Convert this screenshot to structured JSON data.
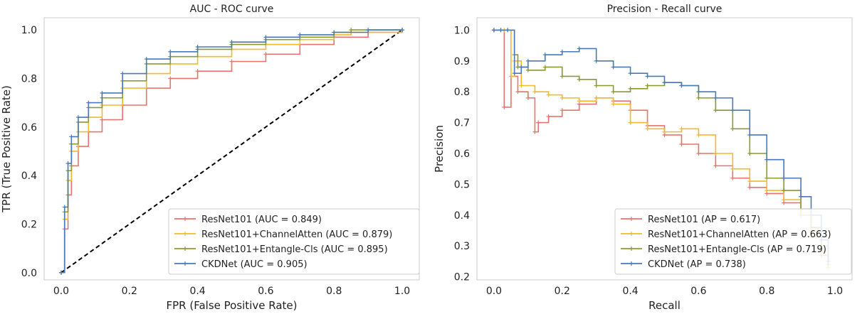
{
  "chart_data": [
    {
      "type": "line",
      "title": "AUC - ROC curve",
      "xlabel": "FPR (False Positive Rate)",
      "ylabel": "TPR (True Positive Rate)",
      "xlim": [
        -0.05,
        1.05
      ],
      "ylim": [
        -0.03,
        1.05
      ],
      "xticks": [
        0.0,
        0.2,
        0.4,
        0.6,
        0.8,
        1.0
      ],
      "yticks": [
        0.0,
        0.2,
        0.4,
        0.6,
        0.8,
        1.0
      ],
      "legend": "lower-right",
      "baseline": {
        "x": [
          0,
          1
        ],
        "y": [
          0,
          1
        ],
        "style": "dashed",
        "color": "#000000"
      },
      "series": [
        {
          "name": "ResNet101 (AUC = 0.849)",
          "color": "#e8736c",
          "x": [
            0,
            0.01,
            0.02,
            0.03,
            0.05,
            0.08,
            0.12,
            0.18,
            0.25,
            0.32,
            0.4,
            0.5,
            0.6,
            0.7,
            0.8,
            0.9,
            1.0
          ],
          "y": [
            0,
            0.18,
            0.32,
            0.44,
            0.52,
            0.58,
            0.63,
            0.69,
            0.76,
            0.8,
            0.83,
            0.87,
            0.9,
            0.94,
            0.97,
            0.99,
            1.0
          ]
        },
        {
          "name": "ResNet101+ChannelAtten (AUC = 0.879)",
          "color": "#f2b92a",
          "x": [
            0,
            0.01,
            0.02,
            0.03,
            0.05,
            0.08,
            0.12,
            0.18,
            0.25,
            0.32,
            0.4,
            0.5,
            0.6,
            0.7,
            0.8,
            0.85,
            1.0
          ],
          "y": [
            0,
            0.22,
            0.38,
            0.5,
            0.58,
            0.64,
            0.69,
            0.76,
            0.82,
            0.86,
            0.89,
            0.92,
            0.94,
            0.96,
            0.98,
            0.99,
            1.0
          ]
        },
        {
          "name": "ResNet101+Entangle-Cls (AUC = 0.895)",
          "color": "#8b9a2d",
          "x": [
            0,
            0.01,
            0.02,
            0.03,
            0.05,
            0.08,
            0.12,
            0.18,
            0.25,
            0.32,
            0.4,
            0.5,
            0.6,
            0.7,
            0.8,
            0.85,
            1.0
          ],
          "y": [
            0,
            0.25,
            0.42,
            0.53,
            0.62,
            0.68,
            0.72,
            0.79,
            0.86,
            0.89,
            0.92,
            0.94,
            0.96,
            0.97,
            0.99,
            1.0,
            1.0
          ]
        },
        {
          "name": "CKDNet (AUC = 0.905)",
          "color": "#4a78b8",
          "x": [
            0,
            0.01,
            0.02,
            0.03,
            0.05,
            0.08,
            0.12,
            0.18,
            0.25,
            0.32,
            0.4,
            0.5,
            0.6,
            0.7,
            0.8,
            0.9,
            1.0
          ],
          "y": [
            0,
            0.27,
            0.45,
            0.56,
            0.64,
            0.7,
            0.74,
            0.82,
            0.88,
            0.91,
            0.93,
            0.95,
            0.97,
            0.98,
            0.99,
            1.0,
            1.0
          ]
        }
      ]
    },
    {
      "type": "line",
      "title": "Precision - Recall curve",
      "xlabel": "Recall",
      "ylabel": "Precision",
      "xlim": [
        -0.05,
        1.05
      ],
      "ylim": [
        0.19,
        1.04
      ],
      "xticks": [
        0.0,
        0.2,
        0.4,
        0.6,
        0.8,
        1.0
      ],
      "yticks": [
        0.2,
        0.3,
        0.4,
        0.5,
        0.6,
        0.7,
        0.8,
        0.9,
        1.0
      ],
      "legend": "lower-right",
      "series": [
        {
          "name": "ResNet101 (AP = 0.617)",
          "color": "#e8736c",
          "x": [
            0,
            0.02,
            0.03,
            0.05,
            0.07,
            0.1,
            0.12,
            0.13,
            0.16,
            0.2,
            0.25,
            0.3,
            0.35,
            0.4,
            0.45,
            0.5,
            0.55,
            0.6,
            0.65,
            0.7,
            0.75,
            0.8,
            0.85,
            0.9,
            0.93,
            0.96,
            0.98
          ],
          "y": [
            1.0,
            1.0,
            0.75,
            0.85,
            0.8,
            0.78,
            0.67,
            0.7,
            0.72,
            0.74,
            0.76,
            0.78,
            0.77,
            0.74,
            0.69,
            0.66,
            0.63,
            0.6,
            0.56,
            0.52,
            0.49,
            0.47,
            0.44,
            0.4,
            0.33,
            0.27,
            0.23
          ]
        },
        {
          "name": "ResNet101+ChannelAtten (AP = 0.663)",
          "color": "#f2b92a",
          "x": [
            0,
            0.03,
            0.05,
            0.06,
            0.08,
            0.12,
            0.16,
            0.2,
            0.25,
            0.3,
            0.35,
            0.4,
            0.45,
            0.5,
            0.55,
            0.6,
            0.65,
            0.7,
            0.75,
            0.8,
            0.85,
            0.9,
            0.93,
            0.96,
            0.98
          ],
          "y": [
            1.0,
            1.0,
            0.85,
            0.9,
            0.82,
            0.8,
            0.79,
            0.78,
            0.77,
            0.78,
            0.76,
            0.7,
            0.68,
            0.67,
            0.68,
            0.66,
            0.6,
            0.55,
            0.51,
            0.48,
            0.45,
            0.4,
            0.35,
            0.28,
            0.23
          ]
        },
        {
          "name": "ResNet101+Entangle-Cls (AP = 0.719)",
          "color": "#8b9a2d",
          "x": [
            0,
            0.04,
            0.06,
            0.07,
            0.1,
            0.15,
            0.2,
            0.25,
            0.3,
            0.35,
            0.4,
            0.45,
            0.5,
            0.55,
            0.6,
            0.65,
            0.7,
            0.75,
            0.8,
            0.85,
            0.9,
            0.93,
            0.96,
            0.98
          ],
          "y": [
            1.0,
            1.0,
            0.92,
            0.88,
            0.87,
            0.88,
            0.85,
            0.84,
            0.82,
            0.8,
            0.81,
            0.82,
            0.83,
            0.82,
            0.78,
            0.74,
            0.68,
            0.6,
            0.52,
            0.48,
            0.42,
            0.36,
            0.3,
            0.24
          ]
        },
        {
          "name": "CKDNet (AP = 0.738)",
          "color": "#4a78b8",
          "x": [
            0,
            0.02,
            0.04,
            0.06,
            0.08,
            0.1,
            0.15,
            0.2,
            0.25,
            0.3,
            0.35,
            0.4,
            0.45,
            0.5,
            0.55,
            0.6,
            0.65,
            0.7,
            0.75,
            0.8,
            0.85,
            0.9,
            0.93,
            0.96,
            0.98
          ],
          "y": [
            1.0,
            1.0,
            1.0,
            0.86,
            0.88,
            0.9,
            0.92,
            0.93,
            0.94,
            0.9,
            0.88,
            0.86,
            0.85,
            0.83,
            0.82,
            0.8,
            0.78,
            0.74,
            0.66,
            0.58,
            0.52,
            0.46,
            0.4,
            0.32,
            0.25
          ]
        }
      ]
    }
  ]
}
